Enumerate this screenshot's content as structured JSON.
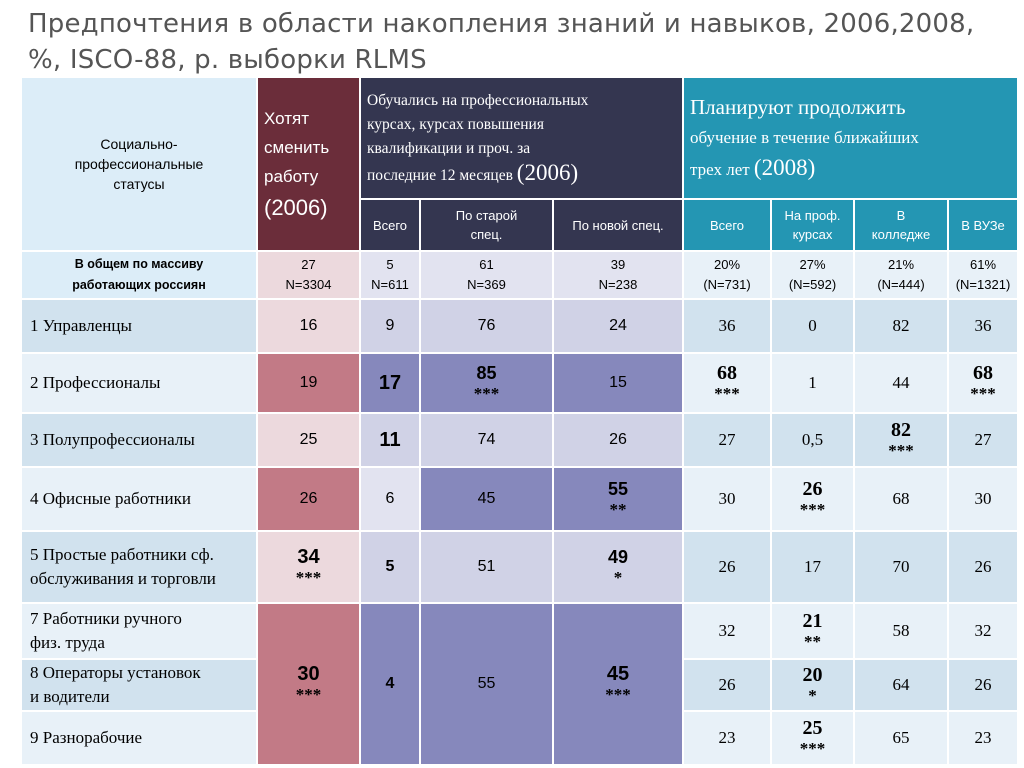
{
  "title": {
    "line1": "Предпочтения в области накопления знаний и навыков, 2006,2008,",
    "line2": "%, ISCO-88, р. выборки RLMS"
  },
  "header": {
    "status": {
      "l1": "Социально-",
      "l2": "профессиональные",
      "l3": "статусы"
    },
    "change_job": {
      "l1": "Хотят",
      "l2": "сменить",
      "l3": "работу",
      "year": "(2006)"
    },
    "studied": {
      "l1": "Обучались на профессиональных",
      "l2": "курсах, курсах повышения",
      "l3": "квалификации  и проч. за",
      "l4": "последние 12 месяцев",
      "year": "(2006)"
    },
    "plan": {
      "l1": "Планируют продолжить",
      "l2": "обучение в течение ближайших",
      "l3": "трех лет",
      "year": "(2008)"
    }
  },
  "subheaders": {
    "studied": [
      {
        "l1": "Всего",
        "l2": ""
      },
      {
        "l1": "По  старой",
        "l2": "спец."
      },
      {
        "l1": "По новой спец.",
        "l2": ""
      }
    ],
    "plan": [
      {
        "l1": "Всего",
        "l2": ""
      },
      {
        "l1": "На проф.",
        "l2": "курсах"
      },
      {
        "l1": "В",
        "l2": "колледже"
      },
      {
        "l1": "В ВУЗе",
        "l2": ""
      }
    ]
  },
  "totals": {
    "label": {
      "l1": "В общем по массиву",
      "l2": "работающих россиян"
    },
    "cells": [
      {
        "v": "27",
        "n": "N=3304"
      },
      {
        "v": "5",
        "n": "N=611"
      },
      {
        "v": "61",
        "n": "N=369"
      },
      {
        "v": "39",
        "n": "N=238"
      },
      {
        "v": "20%",
        "n": "(N=731)"
      },
      {
        "v": "27%",
        "n": "(N=592)"
      },
      {
        "v": "21%",
        "n": "(N=444)"
      },
      {
        "v": "61%",
        "n": "(N=1321)"
      }
    ]
  },
  "rows": [
    {
      "label1": "1  Управленцы",
      "label2": "",
      "change": "16",
      "change_stars": "",
      "total": "9",
      "old": "76",
      "old_stars": "",
      "new": "24",
      "new_stars": "",
      "p_total": "36",
      "p_total_stars": "",
      "p_courses": "0",
      "p_courses_stars": "",
      "p_college": "82",
      "p_college_stars": "",
      "p_uni": "36",
      "p_uni_stars": ""
    },
    {
      "label1": "2  Профессионалы",
      "label2": "",
      "change": "19",
      "change_stars": "",
      "total": "17",
      "old": "85",
      "old_stars": "***",
      "new": "15",
      "new_stars": "",
      "p_total": "68",
      "p_total_stars": "***",
      "p_courses": "1",
      "p_courses_stars": "",
      "p_college": "44",
      "p_college_stars": "",
      "p_uni": "68",
      "p_uni_stars": "***"
    },
    {
      "label1": "3  Полупрофессионалы",
      "label2": "",
      "change": "25",
      "change_stars": "",
      "total": "11",
      "old": "74",
      "old_stars": "",
      "new": "26",
      "new_stars": "",
      "p_total": "27",
      "p_total_stars": "",
      "p_courses": "0,5",
      "p_courses_stars": "",
      "p_college": "82",
      "p_college_stars": "***",
      "p_uni": "27",
      "p_uni_stars": ""
    },
    {
      "label1": "4  Офисные работники",
      "label2": "",
      "change": "26",
      "change_stars": "",
      "total": "6",
      "old": "45",
      "old_stars": "",
      "new": "55",
      "new_stars": "**",
      "p_total": "30",
      "p_total_stars": "",
      "p_courses": "26",
      "p_courses_stars": "***",
      "p_college": "68",
      "p_college_stars": "",
      "p_uni": "30",
      "p_uni_stars": ""
    },
    {
      "label1": "5  Простые работники сф.",
      "label2": "обслуживания и торговли",
      "change": "34",
      "change_stars": "***",
      "total": "5",
      "old": "51",
      "old_stars": "",
      "new": "49",
      "new_stars": "*",
      "p_total": "26",
      "p_total_stars": "",
      "p_courses": "17",
      "p_courses_stars": "",
      "p_college": "70",
      "p_college_stars": "",
      "p_uni": "26",
      "p_uni_stars": ""
    },
    {
      "label1": "7  Работники ручного",
      "label2": "физ. труда",
      "change": "30",
      "change_stars": "***",
      "total": "4",
      "old": "55",
      "old_stars": "",
      "new": "45",
      "new_stars": "***",
      "p_total": "32",
      "p_total_stars": "",
      "p_courses": "21",
      "p_courses_stars": "**",
      "p_college": "58",
      "p_college_stars": "",
      "p_uni": "32",
      "p_uni_stars": ""
    },
    {
      "label1": "8  Операторы  установок",
      "label2": "и водители",
      "p_total": "26",
      "p_total_stars": "",
      "p_courses": "20",
      "p_courses_stars": "*",
      "p_college": "64",
      "p_college_stars": "",
      "p_uni": "26",
      "p_uni_stars": ""
    },
    {
      "label1": "9  Разнорабочие",
      "label2": "",
      "p_total": "23",
      "p_total_stars": "",
      "p_courses": "25",
      "p_courses_stars": "***",
      "p_college": "65",
      "p_college_stars": "",
      "p_uni": "23",
      "p_uni_stars": ""
    }
  ],
  "colors": {
    "change_header": "#6b2d3a",
    "studied_header": "#343650",
    "plan_header": "#2496b3",
    "label_bg": "#dcedf8",
    "pink_highlight": "#c27a86",
    "lavender_highlight": "#8688bc"
  }
}
